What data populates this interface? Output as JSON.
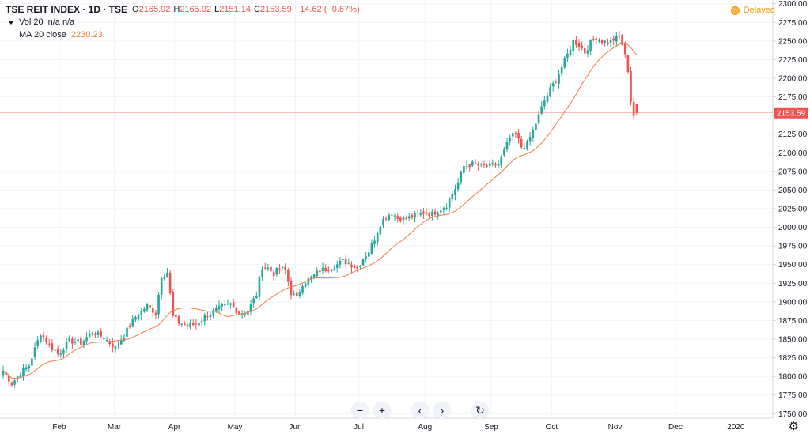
{
  "header": {
    "symbol": "TSE REIT INDEX · 1D · TSE",
    "ohlc": {
      "o": "2165.92",
      "h": "2165.92",
      "l": "2151.14",
      "c": "2153.59",
      "change": "−14.62 (−0.67%)"
    },
    "vol_label": "Vol 20",
    "vol_value": "n/a n/a",
    "ma_label": "MA 20 close",
    "ma_value": "2230.23",
    "delayed": "Delayed"
  },
  "icons": {
    "zoom_out": "minus-icon",
    "zoom_in": "plus-icon",
    "back": "chevron-left-icon",
    "forward": "chevron-right-icon",
    "reset": "reset-icon",
    "settings": "gear-icon"
  },
  "colors": {
    "up": "#26a69a",
    "down": "#ef5350",
    "ma": "#f57c3f",
    "price_line": "#ef5350",
    "grid": "#f0f3fa"
  },
  "chart_data": {
    "type": "candlestick",
    "price_label": "2153.59",
    "ylim": [
      1745,
      2305
    ],
    "y_ticks": [
      1750,
      1775,
      1800,
      1825,
      1850,
      1875,
      1900,
      1925,
      1950,
      1975,
      2000,
      2025,
      2050,
      2075,
      2100,
      2125,
      2150,
      2175,
      2200,
      2225,
      2250,
      2275,
      2300
    ],
    "y_tick_labels": [
      "1750.00",
      "1775.00",
      "1800.00",
      "1825.00",
      "1850.00",
      "1875.00",
      "1900.00",
      "1925.00",
      "1950.00",
      "1975.00",
      "2000.00",
      "2025.00",
      "2050.00",
      "2075.00",
      "2100.00",
      "2125.00",
      "2150.00",
      "2175.00",
      "2200.00",
      "2225.00",
      "2250.00",
      "2275.00",
      "2300.00"
    ],
    "x_labels": [
      {
        "label": "Feb",
        "i": 19.5
      },
      {
        "label": "Mar",
        "i": 38.6
      },
      {
        "label": "Apr",
        "i": 59.5
      },
      {
        "label": "May",
        "i": 80.5
      },
      {
        "label": "Jun",
        "i": 101.5
      },
      {
        "label": "Jul",
        "i": 123.5
      },
      {
        "label": "Aug",
        "i": 146.5
      },
      {
        "label": "Sep",
        "i": 169.5
      },
      {
        "label": "Oct",
        "i": 190.5
      },
      {
        "label": "Nov",
        "i": 212.5
      },
      {
        "label": "Dec",
        "i": 233.5
      },
      {
        "label": "2020",
        "i": 254.5
      }
    ],
    "grid": true,
    "anchors": [
      [
        0,
        1808
      ],
      [
        3,
        1790
      ],
      [
        6,
        1805
      ],
      [
        9,
        1815
      ],
      [
        13,
        1858
      ],
      [
        16,
        1842
      ],
      [
        19,
        1830
      ],
      [
        23,
        1848
      ],
      [
        27,
        1845
      ],
      [
        31,
        1860
      ],
      [
        35,
        1852
      ],
      [
        39,
        1838
      ],
      [
        43,
        1862
      ],
      [
        46,
        1880
      ],
      [
        50,
        1895
      ],
      [
        53,
        1885
      ],
      [
        55,
        1935
      ],
      [
        57,
        1940
      ],
      [
        59,
        1880
      ],
      [
        61,
        1872
      ],
      [
        64,
        1868
      ],
      [
        67,
        1870
      ],
      [
        70,
        1880
      ],
      [
        73,
        1887
      ],
      [
        76,
        1893
      ],
      [
        79,
        1897
      ],
      [
        82,
        1885
      ],
      [
        85,
        1888
      ],
      [
        88,
        1910
      ],
      [
        90,
        1948
      ],
      [
        92,
        1945
      ],
      [
        94,
        1938
      ],
      [
        96,
        1945
      ],
      [
        98,
        1942
      ],
      [
        100,
        1912
      ],
      [
        102,
        1905
      ],
      [
        104,
        1925
      ],
      [
        107,
        1932
      ],
      [
        110,
        1942
      ],
      [
        113,
        1945
      ],
      [
        116,
        1950
      ],
      [
        118,
        1955
      ],
      [
        121,
        1950
      ],
      [
        123,
        1945
      ],
      [
        125,
        1958
      ],
      [
        127,
        1968
      ],
      [
        129,
        1985
      ],
      [
        131,
        2005
      ],
      [
        133,
        2015
      ],
      [
        135,
        2020
      ],
      [
        137,
        2012
      ],
      [
        140,
        2012
      ],
      [
        143,
        2015
      ],
      [
        146,
        2020
      ],
      [
        149,
        2018
      ],
      [
        152,
        2025
      ],
      [
        154,
        2030
      ],
      [
        156,
        2045
      ],
      [
        158,
        2060
      ],
      [
        160,
        2082
      ],
      [
        163,
        2085
      ],
      [
        166,
        2082
      ],
      [
        169,
        2082
      ],
      [
        172,
        2085
      ],
      [
        174,
        2102
      ],
      [
        176,
        2120
      ],
      [
        178,
        2125
      ],
      [
        180,
        2108
      ],
      [
        182,
        2112
      ],
      [
        184,
        2130
      ],
      [
        186,
        2150
      ],
      [
        188,
        2170
      ],
      [
        190,
        2185
      ],
      [
        192,
        2198
      ],
      [
        194,
        2215
      ],
      [
        196,
        2232
      ],
      [
        198,
        2250
      ],
      [
        200,
        2245
      ],
      [
        202,
        2235
      ],
      [
        204,
        2248
      ],
      [
        206,
        2255
      ],
      [
        208,
        2250
      ],
      [
        210,
        2248
      ],
      [
        212,
        2252
      ],
      [
        214,
        2256
      ],
      [
        215,
        2246
      ],
      [
        216,
        2230
      ],
      [
        217,
        2211
      ],
      [
        218,
        2170
      ],
      [
        219,
        2150
      ],
      [
        220,
        2153.59
      ]
    ]
  }
}
